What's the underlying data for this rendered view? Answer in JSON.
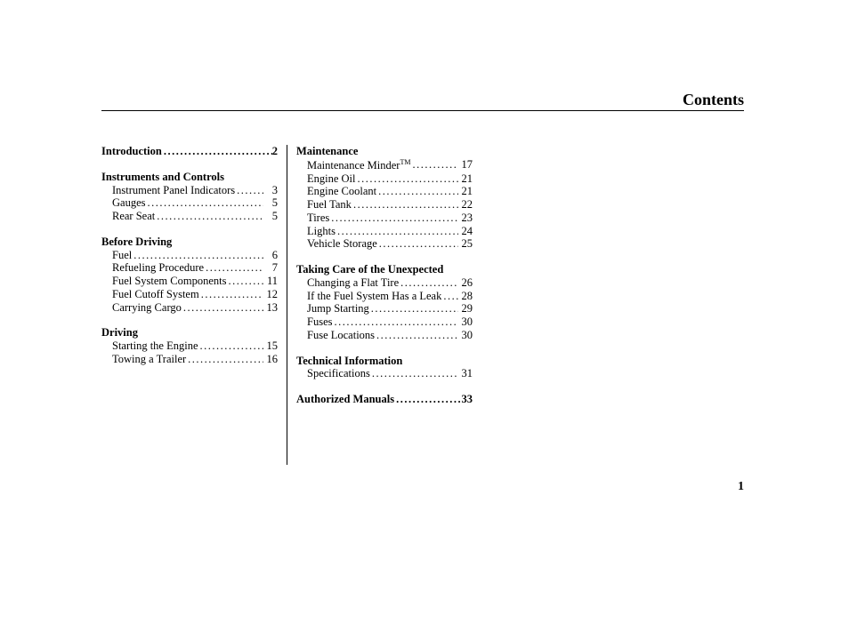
{
  "title": "Contents",
  "page_number": "1",
  "dots": "...................................................",
  "columns": [
    {
      "sections": [
        {
          "heading": "Introduction",
          "heading_page": "2",
          "entries": []
        },
        {
          "heading": "Instruments and Controls",
          "heading_page": null,
          "entries": [
            {
              "label": "Instrument Panel Indicators",
              "page": "3"
            },
            {
              "label": "Gauges",
              "page": "5"
            },
            {
              "label": "Rear Seat",
              "page": "5"
            }
          ]
        },
        {
          "heading": "Before Driving",
          "heading_page": null,
          "entries": [
            {
              "label": "Fuel",
              "page": "6"
            },
            {
              "label": "Refueling Procedure",
              "page": "7"
            },
            {
              "label": "Fuel System Components",
              "page": "11"
            },
            {
              "label": "Fuel Cutoff System",
              "page": "12"
            },
            {
              "label": "Carrying Cargo",
              "page": "13"
            }
          ]
        },
        {
          "heading": "Driving",
          "heading_page": null,
          "entries": [
            {
              "label": "Starting the Engine",
              "page": "15"
            },
            {
              "label": "Towing a Trailer",
              "page": "16"
            }
          ]
        }
      ]
    },
    {
      "sections": [
        {
          "heading": "Maintenance",
          "heading_page": null,
          "entries": [
            {
              "label": "Maintenance Minder",
              "tm": true,
              "page": "17"
            },
            {
              "label": "Engine Oil",
              "page": "21"
            },
            {
              "label": "Engine Coolant",
              "page": "21"
            },
            {
              "label": "Fuel Tank",
              "page": "22"
            },
            {
              "label": "Tires",
              "page": "23"
            },
            {
              "label": "Lights",
              "page": "24"
            },
            {
              "label": "Vehicle Storage",
              "page": "25"
            }
          ]
        },
        {
          "heading": "Taking Care of the Unexpected",
          "heading_page": null,
          "entries": [
            {
              "label": "Changing a Flat Tire",
              "page": "26"
            },
            {
              "label": "If the Fuel System Has a Leak",
              "page": "28"
            },
            {
              "label": "Jump Starting",
              "page": "29"
            },
            {
              "label": "Fuses",
              "page": "30"
            },
            {
              "label": "Fuse Locations",
              "page": "30"
            }
          ]
        },
        {
          "heading": "Technical Information",
          "heading_page": null,
          "entries": [
            {
              "label": "Specifications",
              "page": "31"
            }
          ]
        },
        {
          "heading": "Authorized Manuals",
          "heading_page": "33",
          "entries": []
        }
      ]
    }
  ]
}
